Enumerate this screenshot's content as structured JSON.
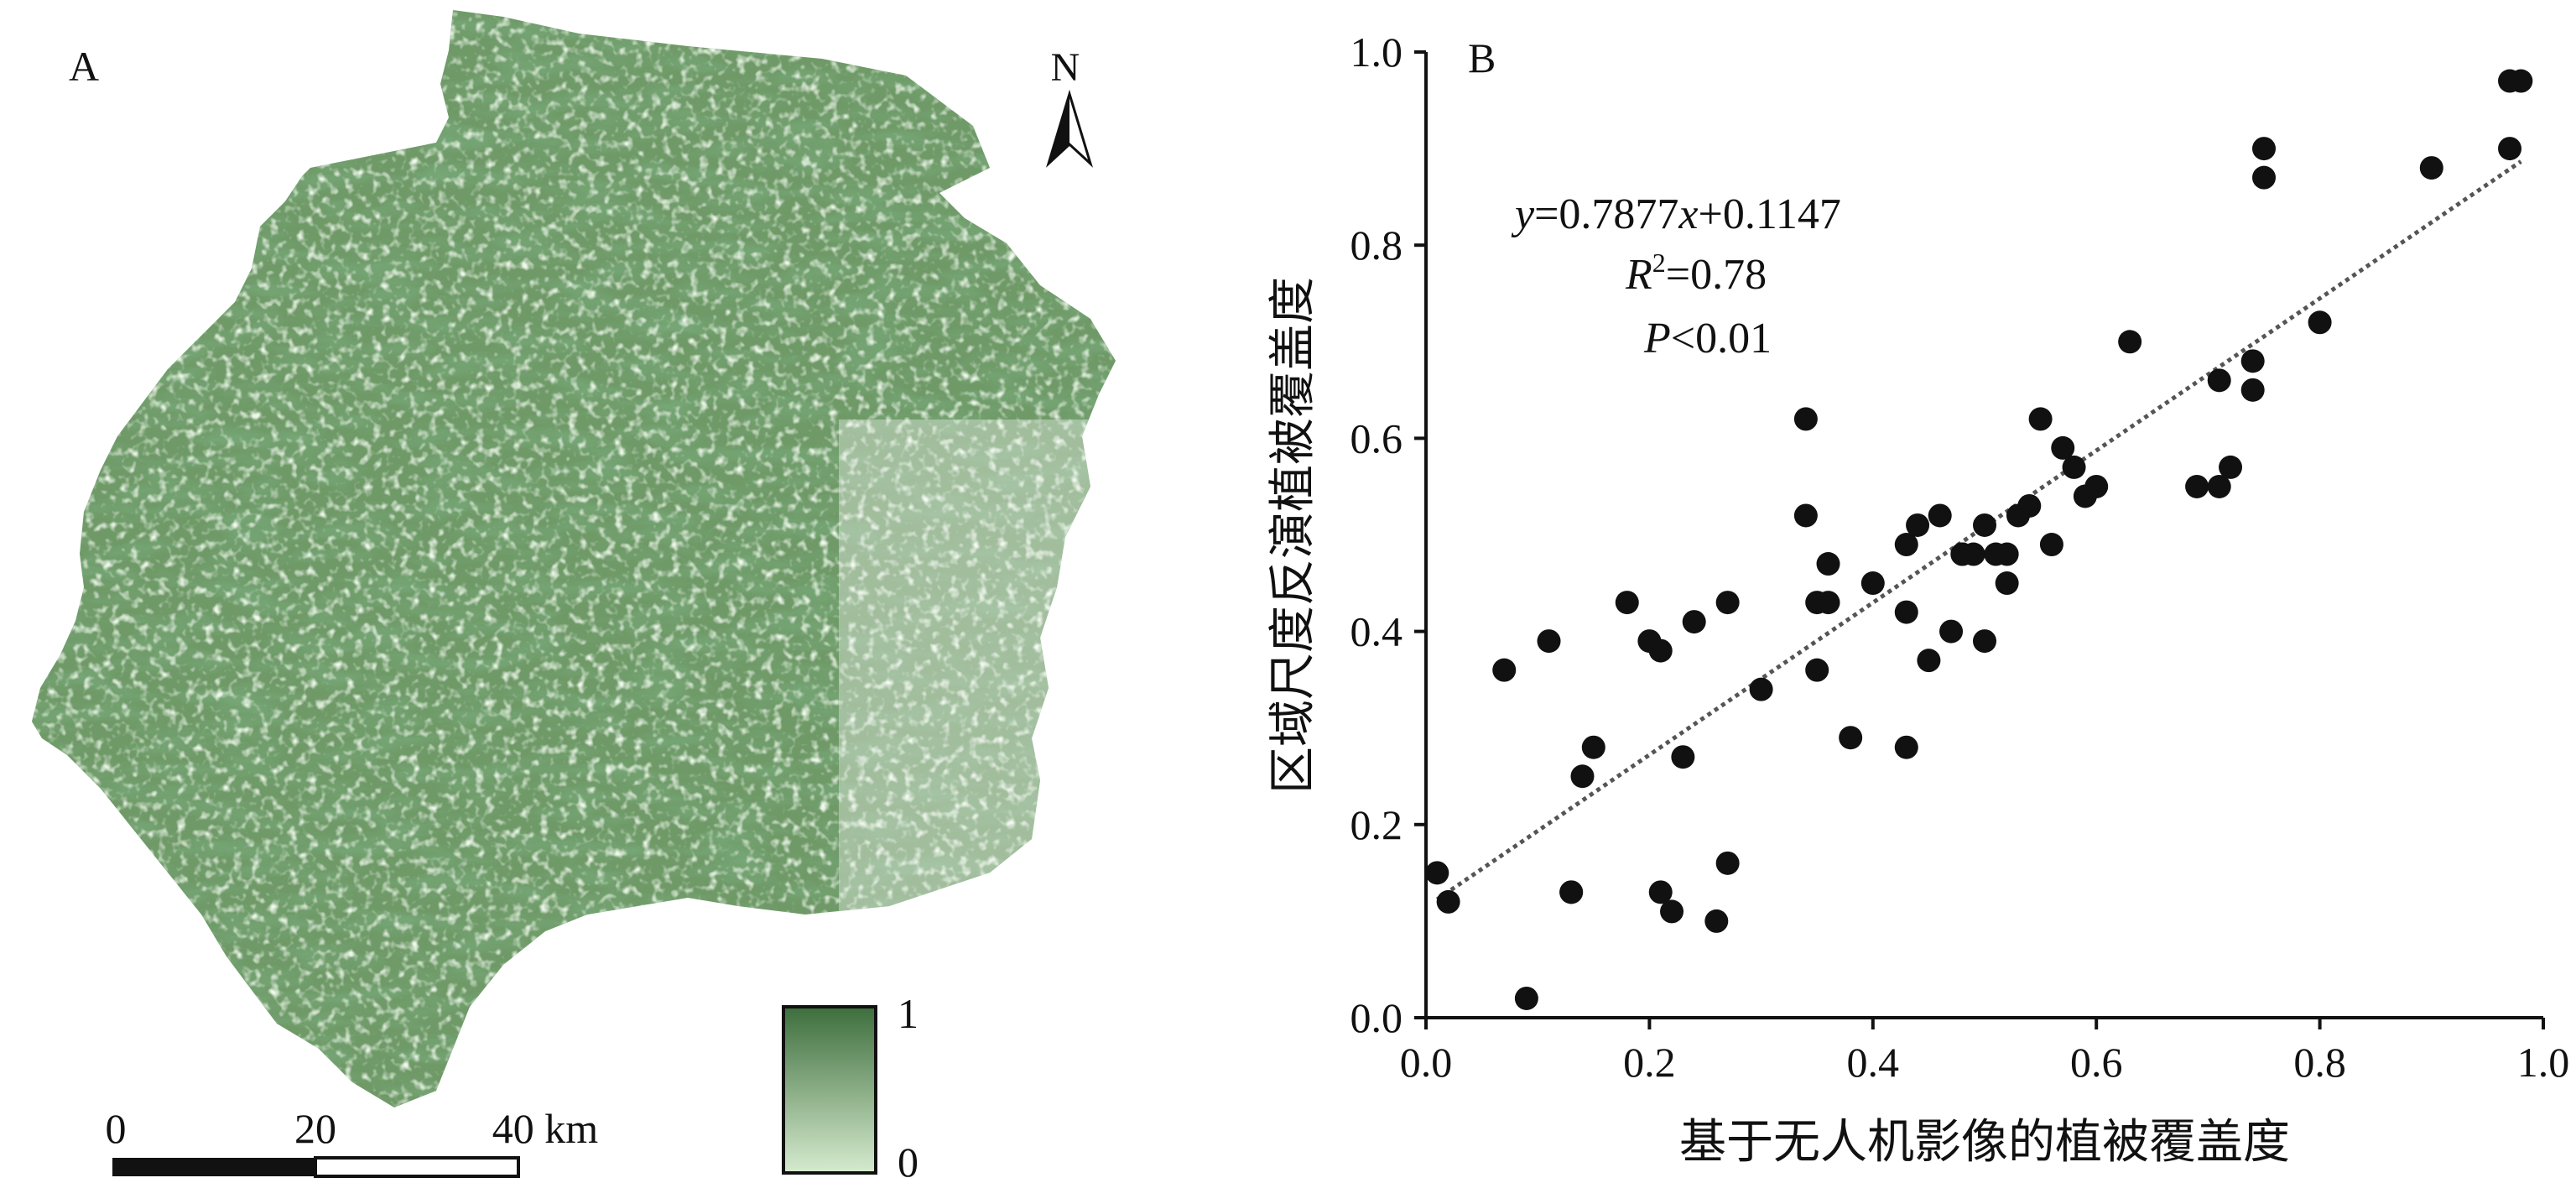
{
  "panel_a": {
    "label": "A",
    "north_label": "N",
    "scale_bar": {
      "labels": [
        "0",
        "20",
        "40 km"
      ]
    },
    "legend": {
      "max_label": "1",
      "min_label": "0",
      "color_high": "#3d6e3c",
      "color_low": "#d6ebcf"
    },
    "map_colors": {
      "dark": "#2f5f2e",
      "mid": "#6f9a68",
      "light": "#c8e0c0"
    }
  },
  "chart_data": {
    "type": "scatter",
    "panel_label": "B",
    "xlabel": "基于无人机影像的植被覆盖度",
    "ylabel": "区域尺度反演植被覆盖度",
    "xlim": [
      0.0,
      1.0
    ],
    "ylim": [
      0.0,
      1.0
    ],
    "xticks": [
      "0.0",
      "0.2",
      "0.4",
      "0.6",
      "0.8",
      "1.0"
    ],
    "yticks": [
      "0.0",
      "0.2",
      "0.4",
      "0.6",
      "0.8",
      "1.0"
    ],
    "grid": false,
    "point_color": "#111111",
    "fit_line": {
      "slope": 0.7877,
      "intercept": 0.1147,
      "x_range": [
        0.01,
        0.98
      ],
      "style": "dotted"
    },
    "annotations": {
      "equation": {
        "y": "y",
        "eq1": "=0.7877",
        "x": "x",
        "eq2": "+0.1147"
      },
      "r2": {
        "r": "R",
        "sup": "2",
        "rest": "=0.78"
      },
      "p": {
        "p": "P",
        "rest": "<0.01"
      }
    },
    "points": [
      [
        0.01,
        0.15
      ],
      [
        0.02,
        0.12
      ],
      [
        0.09,
        0.02
      ],
      [
        0.07,
        0.36
      ],
      [
        0.11,
        0.39
      ],
      [
        0.13,
        0.13
      ],
      [
        0.13,
        0.13
      ],
      [
        0.14,
        0.25
      ],
      [
        0.15,
        0.28
      ],
      [
        0.18,
        0.43
      ],
      [
        0.2,
        0.39
      ],
      [
        0.21,
        0.38
      ],
      [
        0.21,
        0.13
      ],
      [
        0.22,
        0.11
      ],
      [
        0.23,
        0.27
      ],
      [
        0.24,
        0.41
      ],
      [
        0.26,
        0.1
      ],
      [
        0.27,
        0.43
      ],
      [
        0.27,
        0.16
      ],
      [
        0.3,
        0.34
      ],
      [
        0.34,
        0.62
      ],
      [
        0.34,
        0.52
      ],
      [
        0.35,
        0.43
      ],
      [
        0.35,
        0.36
      ],
      [
        0.36,
        0.47
      ],
      [
        0.36,
        0.43
      ],
      [
        0.38,
        0.29
      ],
      [
        0.4,
        0.45
      ],
      [
        0.43,
        0.28
      ],
      [
        0.43,
        0.49
      ],
      [
        0.43,
        0.42
      ],
      [
        0.44,
        0.51
      ],
      [
        0.45,
        0.37
      ],
      [
        0.46,
        0.52
      ],
      [
        0.47,
        0.4
      ],
      [
        0.48,
        0.48
      ],
      [
        0.48,
        0.48
      ],
      [
        0.49,
        0.48
      ],
      [
        0.5,
        0.39
      ],
      [
        0.5,
        0.51
      ],
      [
        0.51,
        0.48
      ],
      [
        0.52,
        0.45
      ],
      [
        0.52,
        0.48
      ],
      [
        0.53,
        0.52
      ],
      [
        0.54,
        0.53
      ],
      [
        0.55,
        0.62
      ],
      [
        0.56,
        0.49
      ],
      [
        0.57,
        0.59
      ],
      [
        0.58,
        0.57
      ],
      [
        0.59,
        0.54
      ],
      [
        0.6,
        0.55
      ],
      [
        0.63,
        0.7
      ],
      [
        0.69,
        0.55
      ],
      [
        0.71,
        0.55
      ],
      [
        0.71,
        0.66
      ],
      [
        0.72,
        0.57
      ],
      [
        0.74,
        0.68
      ],
      [
        0.74,
        0.65
      ],
      [
        0.75,
        0.87
      ],
      [
        0.75,
        0.9
      ],
      [
        0.8,
        0.72
      ],
      [
        0.9,
        0.88
      ],
      [
        0.97,
        0.9
      ],
      [
        0.97,
        0.97
      ],
      [
        0.98,
        0.97
      ]
    ]
  }
}
